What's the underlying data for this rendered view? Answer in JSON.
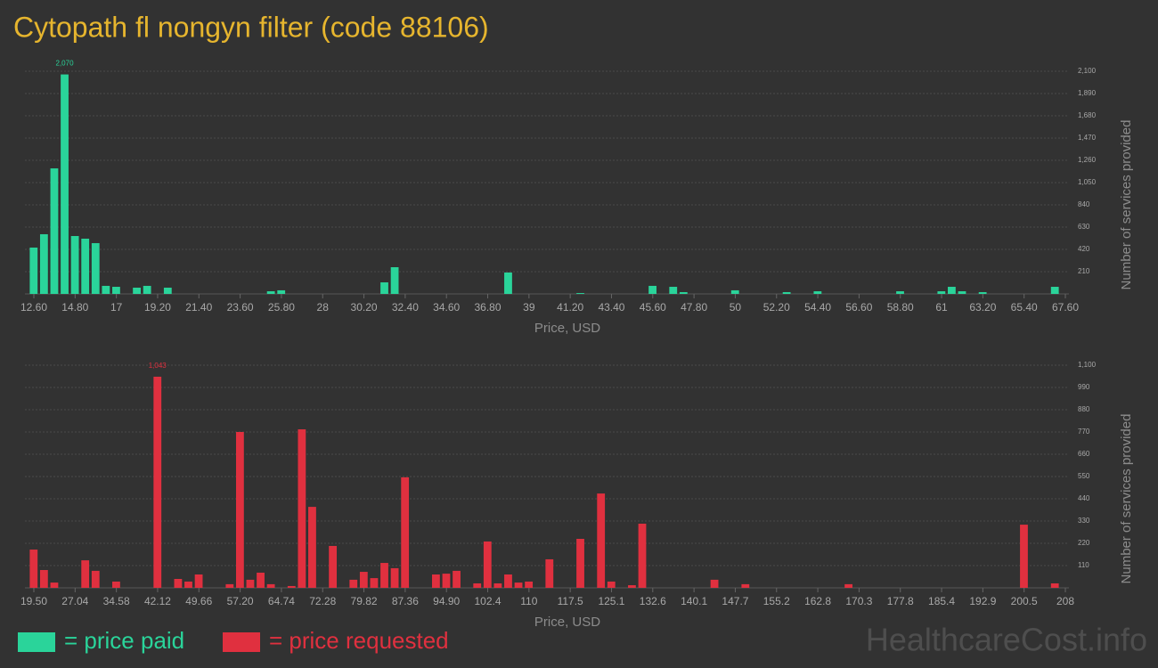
{
  "title": "Cytopath fl nongyn filter (code 88106)",
  "watermark": "HealthcareCost.info",
  "legend": [
    {
      "label": "= price paid",
      "color": "#2ad49a"
    },
    {
      "label": "= price requested",
      "color": "#e0303f"
    }
  ],
  "chart_data": [
    {
      "type": "histogram",
      "color": "#2ad49a",
      "x_label": "Price, USD",
      "y_label": "Number of services provided",
      "grid": true,
      "bins": [
        12.6,
        13.15,
        13.7,
        14.25,
        14.8,
        15.35,
        15.9,
        16.45,
        17,
        17.55,
        18.1,
        18.65,
        19.2,
        19.75,
        20.3,
        20.85,
        21.4,
        21.95,
        22.5,
        23.05,
        23.6,
        24.15,
        24.7,
        25.25,
        25.8,
        26.35,
        26.9,
        27.45,
        28,
        28.55,
        29.1,
        29.65,
        30.2,
        30.75,
        31.3,
        31.85,
        32.4,
        32.95,
        33.5,
        34.05,
        34.6,
        35.15,
        35.7,
        36.25,
        36.8,
        37.35,
        37.9,
        38.45,
        39,
        39.55,
        40.1,
        40.65,
        41.2,
        41.75,
        42.3,
        42.85,
        43.4,
        43.95,
        44.5,
        45.05,
        45.6,
        46.15,
        46.7,
        47.25,
        47.8,
        48.35,
        48.9,
        49.45,
        50,
        50.55,
        51.1,
        51.65,
        52.2,
        52.75,
        53.3,
        53.85,
        54.4,
        54.95,
        55.5,
        56.05,
        56.6,
        57.15,
        57.7,
        58.25,
        58.8,
        59.35,
        59.9,
        60.45,
        61,
        61.55,
        62.1,
        62.65,
        63.2,
        63.75,
        64.3,
        64.85,
        65.4,
        65.95,
        66.5,
        67.05,
        67.6
      ],
      "values": [
        437,
        563,
        1184,
        2070,
        546,
        521,
        479,
        76,
        67,
        0,
        59,
        76,
        0,
        59,
        0,
        0,
        0,
        0,
        0,
        0,
        0,
        0,
        0,
        25,
        34,
        0,
        0,
        0,
        0,
        0,
        0,
        0,
        0,
        0,
        109,
        252,
        0,
        0,
        0,
        0,
        0,
        0,
        0,
        0,
        0,
        0,
        202,
        0,
        0,
        0,
        0,
        0,
        0,
        8,
        0,
        0,
        0,
        0,
        0,
        0,
        76,
        0,
        67,
        17,
        0,
        0,
        0,
        0,
        34,
        0,
        0,
        0,
        0,
        17,
        0,
        0,
        25,
        0,
        0,
        0,
        0,
        0,
        0,
        0,
        25,
        0,
        0,
        0,
        25,
        67,
        25,
        0,
        17,
        0,
        0,
        0,
        0,
        0,
        0,
        67
      ],
      "value_labels": [
        null,
        null,
        null,
        "2,070",
        null,
        null,
        null,
        null,
        null,
        null,
        null,
        null,
        null,
        null,
        null,
        null,
        null,
        null,
        null,
        null,
        null,
        null,
        null,
        null,
        null,
        null,
        null,
        null,
        null,
        null,
        null,
        null,
        null,
        null,
        null,
        null,
        null,
        null,
        null,
        null,
        null,
        null,
        null,
        null,
        null,
        null,
        null,
        null,
        null,
        null,
        null,
        null,
        null,
        null,
        null,
        null,
        null,
        null,
        null,
        null,
        null,
        null,
        null,
        null,
        null,
        null,
        null,
        null,
        null,
        null,
        null,
        null,
        null,
        null,
        null,
        null,
        null,
        null,
        null,
        null,
        null,
        null,
        null,
        null,
        null,
        null,
        null,
        null,
        null,
        null,
        null,
        null,
        null,
        null,
        null,
        null,
        null,
        null,
        null,
        null
      ],
      "xlim": [
        12.6,
        67.6
      ],
      "xticks": [
        {
          "value": 12.6,
          "label": "12.60"
        },
        {
          "value": 14.8,
          "label": "14.80"
        },
        17,
        {
          "value": 19.2,
          "label": "19.20"
        },
        {
          "value": 21.4,
          "label": "21.40"
        },
        {
          "value": 23.6,
          "label": "23.60"
        },
        {
          "value": 25.8,
          "label": "25.80"
        },
        28,
        {
          "value": 30.2,
          "label": "30.20"
        },
        {
          "value": 32.4,
          "label": "32.40"
        },
        {
          "value": 34.6,
          "label": "34.60"
        },
        {
          "value": 36.8,
          "label": "36.80"
        },
        39,
        {
          "value": 41.2,
          "label": "41.20"
        },
        {
          "value": 43.4,
          "label": "43.40"
        },
        {
          "value": 45.6,
          "label": "45.60"
        },
        {
          "value": 47.8,
          "label": "47.80"
        },
        50,
        {
          "value": 52.2,
          "label": "52.20"
        },
        {
          "value": 54.4,
          "label": "54.40"
        },
        {
          "value": 56.6,
          "label": "56.60"
        },
        {
          "value": 58.8,
          "label": "58.80"
        },
        61,
        {
          "value": 63.2,
          "label": "63.20"
        },
        {
          "value": 65.4,
          "label": "65.40"
        },
        {
          "value": 67.6,
          "label": "67.60"
        }
      ],
      "ylim": [
        0,
        2100
      ],
      "yticks": [
        210,
        420,
        630,
        840,
        {
          "value": 1050,
          "label": "1,050"
        },
        {
          "value": 1260,
          "label": "1,260"
        },
        {
          "value": 1470,
          "label": "1,470"
        },
        {
          "value": 1680,
          "label": "1,680"
        },
        {
          "value": 1890,
          "label": "1,890"
        },
        {
          "value": 2100,
          "label": "2,100"
        }
      ]
    },
    {
      "type": "histogram",
      "color": "#e0303f",
      "x_label": "Price, USD",
      "y_label": "Number of services provided",
      "grid": true,
      "bins": [
        19.5,
        21.385,
        23.27,
        25.155,
        27.04,
        28.925,
        30.81,
        32.695,
        34.58,
        36.465,
        38.35,
        40.235,
        42.12,
        44.005,
        45.89,
        47.775,
        49.66,
        51.545,
        53.43,
        55.315,
        57.2,
        59.085,
        60.97,
        62.855,
        64.74,
        66.625,
        68.51,
        70.395,
        72.28,
        74.165,
        76.05,
        77.935,
        79.82,
        81.705,
        83.59,
        85.475,
        87.36,
        89.245,
        91.13,
        93.015,
        94.9,
        96.785,
        98.67,
        100.555,
        102.44,
        104.325,
        106.21,
        108.095,
        109.98,
        111.865,
        113.75,
        115.635,
        117.52,
        119.405,
        121.29,
        123.175,
        125.06,
        126.945,
        128.83,
        130.715,
        132.6,
        134.485,
        136.37,
        138.255,
        140.14,
        142.025,
        143.91,
        145.795,
        147.68,
        149.565,
        151.45,
        153.335,
        155.22,
        157.105,
        158.99,
        160.875,
        162.76,
        164.645,
        166.53,
        168.415,
        170.3,
        172.185,
        174.07,
        175.955,
        177.84,
        179.725,
        181.61,
        183.495,
        185.38,
        187.265,
        189.15,
        191.035,
        192.92,
        194.805,
        196.69,
        198.575,
        200.46,
        202.345,
        204.23,
        206.115,
        208
      ],
      "values": [
        189,
        88,
        26,
        0,
        0,
        136,
        84,
        0,
        31,
        0,
        0,
        0,
        1043,
        0,
        44,
        31,
        66,
        0,
        0,
        18,
        770,
        40,
        75,
        18,
        0,
        9,
        783,
        400,
        0,
        207,
        0,
        40,
        79,
        48,
        123,
        97,
        546,
        0,
        0,
        66,
        70,
        84,
        0,
        22,
        229,
        22,
        66,
        26,
        31,
        0,
        141,
        0,
        0,
        242,
        0,
        466,
        31,
        0,
        13,
        317,
        0,
        0,
        0,
        0,
        0,
        0,
        40,
        0,
        0,
        18,
        0,
        0,
        0,
        0,
        0,
        0,
        0,
        0,
        0,
        18,
        0,
        0,
        0,
        0,
        0,
        0,
        0,
        0,
        0,
        0,
        0,
        0,
        0,
        0,
        0,
        0,
        312,
        0,
        0,
        22
      ],
      "value_labels": [
        null,
        null,
        null,
        null,
        null,
        null,
        null,
        null,
        null,
        null,
        null,
        null,
        "1,043",
        null,
        null,
        null,
        null,
        null,
        null,
        null,
        null,
        null,
        null,
        null,
        null,
        null,
        null,
        null,
        null,
        null,
        null,
        null,
        null,
        null,
        null,
        null,
        null,
        null,
        null,
        null,
        null,
        null,
        null,
        null,
        null,
        null,
        null,
        null,
        null,
        null,
        null,
        null,
        null,
        null,
        null,
        null,
        null,
        null,
        null,
        null,
        null,
        null,
        null,
        null,
        null,
        null,
        null,
        null,
        null,
        null,
        null,
        null,
        null,
        null,
        null,
        null,
        null,
        null,
        null,
        null,
        null,
        null,
        null,
        null,
        null,
        null,
        null,
        null,
        null,
        null,
        null,
        null,
        null,
        null,
        null,
        null,
        null,
        null,
        null,
        null
      ],
      "xlim": [
        19.5,
        208
      ],
      "xticks": [
        {
          "value": 19.5,
          "label": "19.50"
        },
        27.04,
        34.58,
        42.12,
        49.66,
        {
          "value": 57.2,
          "label": "57.20"
        },
        64.74,
        72.28,
        79.82,
        87.36,
        {
          "value": 94.9,
          "label": "94.90"
        },
        {
          "value": 102.44,
          "label": "102.4"
        },
        {
          "value": 109.98,
          "label": "110"
        },
        {
          "value": 117.52,
          "label": "117.5"
        },
        {
          "value": 125.06,
          "label": "125.1"
        },
        132.6,
        {
          "value": 140.14,
          "label": "140.1"
        },
        {
          "value": 147.68,
          "label": "147.7"
        },
        {
          "value": 155.22,
          "label": "155.2"
        },
        {
          "value": 162.76,
          "label": "162.8"
        },
        170.3,
        {
          "value": 177.84,
          "label": "177.8"
        },
        {
          "value": 185.38,
          "label": "185.4"
        },
        {
          "value": 192.92,
          "label": "192.9"
        },
        {
          "value": 200.46,
          "label": "200.5"
        },
        208
      ],
      "ylim": [
        0,
        1100
      ],
      "yticks": [
        110,
        220,
        330,
        440,
        550,
        660,
        770,
        880,
        990,
        {
          "value": 1100,
          "label": "1,100"
        }
      ]
    }
  ]
}
